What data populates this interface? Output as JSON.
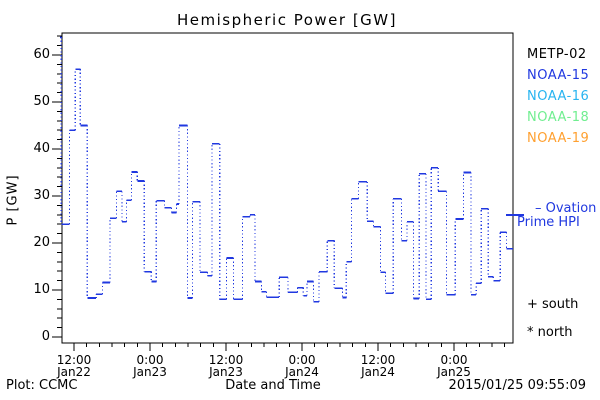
{
  "window": {
    "background": "#ffffff",
    "frame_color": "#000000"
  },
  "chart": {
    "title": "Hemispheric Power [GW]",
    "x_axis_title": "Date and Time",
    "y_axis_label": "P [GW]",
    "footer_left": "Plot: CCMC",
    "timestamp": "2015/01/25 09:55:09"
  },
  "legend": {
    "satellites": [
      {
        "label": "METP-02",
        "color": "#000000"
      },
      {
        "label": "NOAA-15",
        "color": "#2038e0"
      },
      {
        "label": "NOAA-16",
        "color": "#28b4f0"
      },
      {
        "label": "NOAA-18",
        "color": "#70ee90"
      },
      {
        "label": "NOAA-19",
        "color": "#ffa030"
      }
    ],
    "ovation_line1": "– Ovation",
    "ovation_line2": "Prime HPI",
    "ovation_color": "#2038e0",
    "marker_south": "+ south",
    "marker_north": "* north"
  },
  "chart_data": {
    "type": "line",
    "subtype": "step",
    "title": "Hemispheric Power [GW]",
    "xlabel": "Date and Time",
    "ylabel": "P [GW]",
    "ylim": [
      0,
      65
    ],
    "grid": false,
    "legend_position": "right-outside",
    "line_color": "#2038e0",
    "line_style": "solid horizontals, dotted vertical connectors",
    "y_ticks": [
      0,
      10,
      20,
      30,
      40,
      50,
      60
    ],
    "y_minor_step": 2,
    "x_minor_step_hours": 2,
    "x_ticks": [
      {
        "t": 12,
        "time": "12:00",
        "date": "Jan22"
      },
      {
        "t": 24,
        "time": "0:00",
        "date": "Jan23"
      },
      {
        "t": 36,
        "time": "12:00",
        "date": "Jan23"
      },
      {
        "t": 48,
        "time": "0:00",
        "date": "Jan24"
      },
      {
        "t": 60,
        "time": "12:00",
        "date": "Jan24"
      },
      {
        "t": 72,
        "time": "0:00",
        "date": "Jan25"
      }
    ],
    "x_range_hours": [
      10,
      81.3
    ],
    "t_unit": "hours since 2015-01-22 00:00",
    "series": [
      {
        "name": "Ovation Prime HPI",
        "t_end": 81.3,
        "t": [
          9.8,
          10.0,
          11.3,
          12.2,
          13.0,
          14.1,
          15.5,
          16.5,
          17.7,
          18.7,
          19.6,
          20.3,
          21.1,
          22.0,
          23.1,
          24.2,
          25.0,
          26.3,
          27.4,
          28.2,
          28.6,
          29.9,
          30.7,
          31.9,
          33.1,
          33.8,
          35.0,
          36.1,
          37.2,
          38.6,
          39.8,
          40.6,
          41.6,
          42.4,
          44.4,
          45.8,
          47.3,
          48.2,
          48.8,
          49.8,
          50.7,
          52.0,
          53.1,
          54.4,
          55.0,
          55.8,
          56.9,
          58.3,
          59.3,
          60.4,
          61.2,
          62.4,
          63.7,
          64.6,
          65.6,
          66.5,
          67.6,
          68.4,
          69.5,
          70.8,
          72.2,
          73.5,
          74.7,
          75.5,
          76.3,
          77.4,
          78.2,
          79.3,
          80.3
        ],
        "v": [
          63.8,
          24.0,
          44.0,
          57.0,
          45.0,
          8.3,
          9.1,
          11.6,
          25.3,
          31.0,
          24.5,
          29.1,
          35.1,
          33.2,
          13.9,
          11.8,
          29.0,
          27.5,
          26.5,
          28.3,
          45.0,
          8.3,
          28.8,
          13.8,
          13.0,
          41.1,
          8.0,
          16.8,
          8.0,
          25.6,
          26.0,
          11.8,
          9.6,
          8.5,
          12.7,
          9.5,
          10.5,
          8.8,
          11.8,
          7.5,
          13.9,
          20.5,
          10.4,
          8.4,
          16.0,
          29.4,
          33.0,
          24.6,
          23.5,
          13.8,
          9.3,
          29.4,
          20.5,
          24.5,
          8.2,
          34.7,
          8.0,
          36.0,
          31.0,
          9.0,
          25.1,
          35.0,
          9.0,
          11.4,
          27.3,
          12.8,
          12.0,
          22.3,
          18.8
        ]
      }
    ]
  }
}
